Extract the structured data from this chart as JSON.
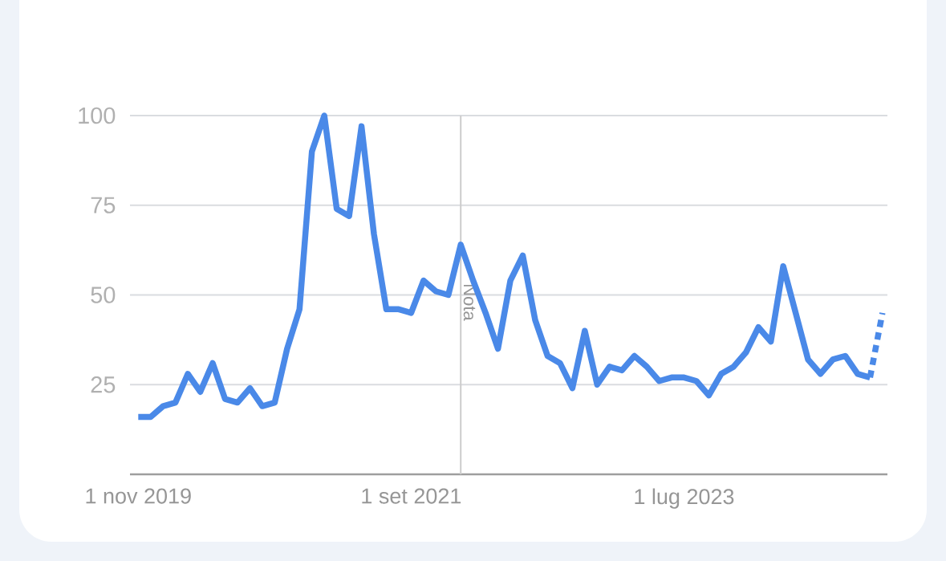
{
  "chart_data": {
    "type": "line",
    "x": [
      "2019-11",
      "2019-12",
      "2020-01",
      "2020-02",
      "2020-03",
      "2020-04",
      "2020-05",
      "2020-06",
      "2020-07",
      "2020-08",
      "2020-09",
      "2020-10",
      "2020-11",
      "2020-12",
      "2021-01",
      "2021-02",
      "2021-03",
      "2021-04",
      "2021-05",
      "2021-06",
      "2021-07",
      "2021-08",
      "2021-09",
      "2021-10",
      "2021-11",
      "2021-12",
      "2022-01",
      "2022-02",
      "2022-03",
      "2022-04",
      "2022-05",
      "2022-06",
      "2022-07",
      "2022-08",
      "2022-09",
      "2022-10",
      "2022-11",
      "2022-12",
      "2023-01",
      "2023-02",
      "2023-03",
      "2023-04",
      "2023-05",
      "2023-06",
      "2023-07",
      "2023-08",
      "2023-09",
      "2023-10",
      "2023-11",
      "2023-12",
      "2024-01",
      "2024-02",
      "2024-03",
      "2024-04",
      "2024-05",
      "2024-06",
      "2024-07",
      "2024-08",
      "2024-09",
      "2024-10"
    ],
    "series": [
      {
        "color": "#4a89e8",
        "values": [
          16,
          16,
          19,
          20,
          28,
          23,
          31,
          21,
          20,
          24,
          19,
          20,
          35,
          46,
          90,
          100,
          74,
          72,
          97,
          67,
          46,
          46,
          45,
          54,
          51,
          50,
          64,
          54,
          45,
          35,
          54,
          61,
          43,
          33,
          31,
          24,
          40,
          25,
          30,
          29,
          33,
          30,
          26,
          27,
          27,
          26,
          22,
          28,
          30,
          34,
          41,
          37,
          58,
          45,
          32,
          28,
          32,
          33,
          28,
          27
        ]
      },
      {
        "color": "#4a89e8",
        "x": [
          "2024-10",
          "2024-11"
        ],
        "values": [
          27,
          45
        ],
        "line_style": "dotted"
      }
    ],
    "xlim": [
      "2019-10-11",
      "2024-11-13"
    ],
    "xticks": [
      {
        "value": "2019-11",
        "label": "1 nov 2019"
      },
      {
        "value": "2021-09",
        "label": "1 set 2021"
      },
      {
        "value": "2023-07",
        "label": "1 lug 2023"
      }
    ],
    "ylim": [
      0,
      100
    ],
    "yticks": [
      25,
      50,
      75,
      100
    ],
    "ref_lines": [
      {
        "axis": "x",
        "value": "2022-01",
        "label": "Nota",
        "color": "#cccccc"
      }
    ],
    "grid": "y",
    "line_style": "solid",
    "marker": "none"
  }
}
